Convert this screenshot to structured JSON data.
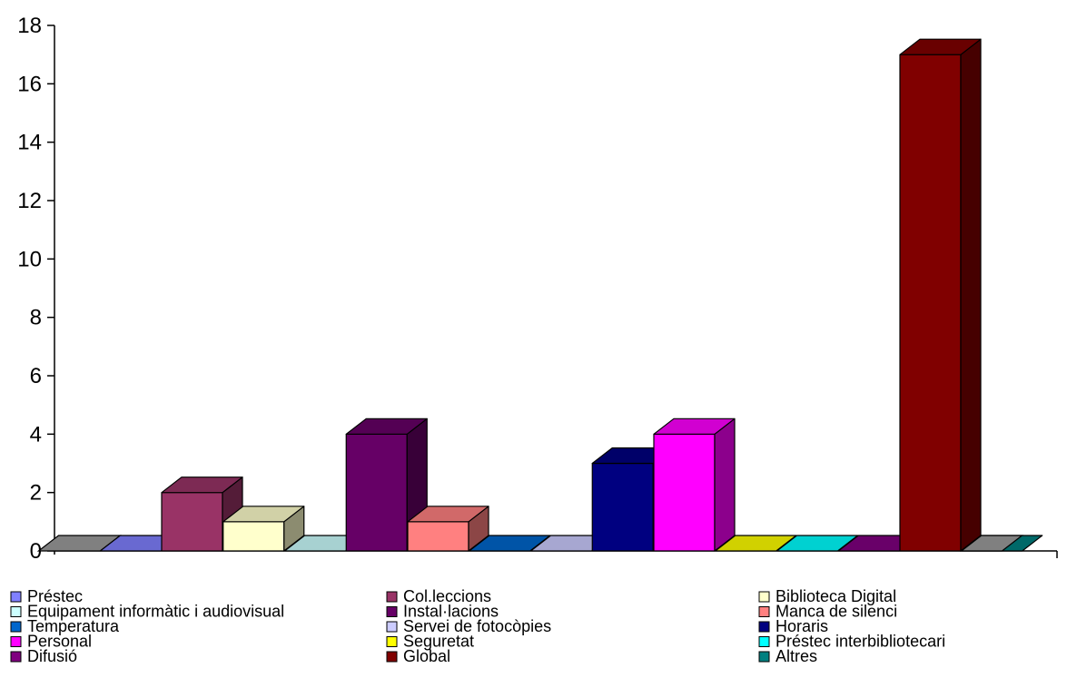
{
  "chart_data": {
    "type": "bar",
    "title": "",
    "xlabel": "",
    "ylabel": "",
    "ylim": [
      0,
      18
    ],
    "yticks": [
      0,
      2,
      4,
      6,
      8,
      10,
      12,
      14,
      16,
      18
    ],
    "grid": false,
    "legend_position": "bottom",
    "categories": [
      "Préstec",
      "Col.leccions",
      "Biblioteca Digital",
      "Equipament informàtic i audiovisual",
      "Instal·lacions",
      "Manca de silenci",
      "Temperatura",
      "Servei de fotocòpies",
      "Horaris",
      "Personal",
      "Seguretat",
      "Préstec interbibliotecari",
      "Difusió",
      "Global",
      "Altres"
    ],
    "values": [
      0,
      2,
      1,
      0,
      4,
      1,
      0,
      0,
      3,
      4,
      0,
      0,
      0,
      17,
      0
    ],
    "colors": [
      "#8080ff",
      "#993366",
      "#ffffcc",
      "#ccffff",
      "#660066",
      "#ff8080",
      "#0066cc",
      "#ccccff",
      "#000080",
      "#ff00ff",
      "#ffff00",
      "#00ffff",
      "#800080",
      "#800000",
      "#008080"
    ]
  }
}
